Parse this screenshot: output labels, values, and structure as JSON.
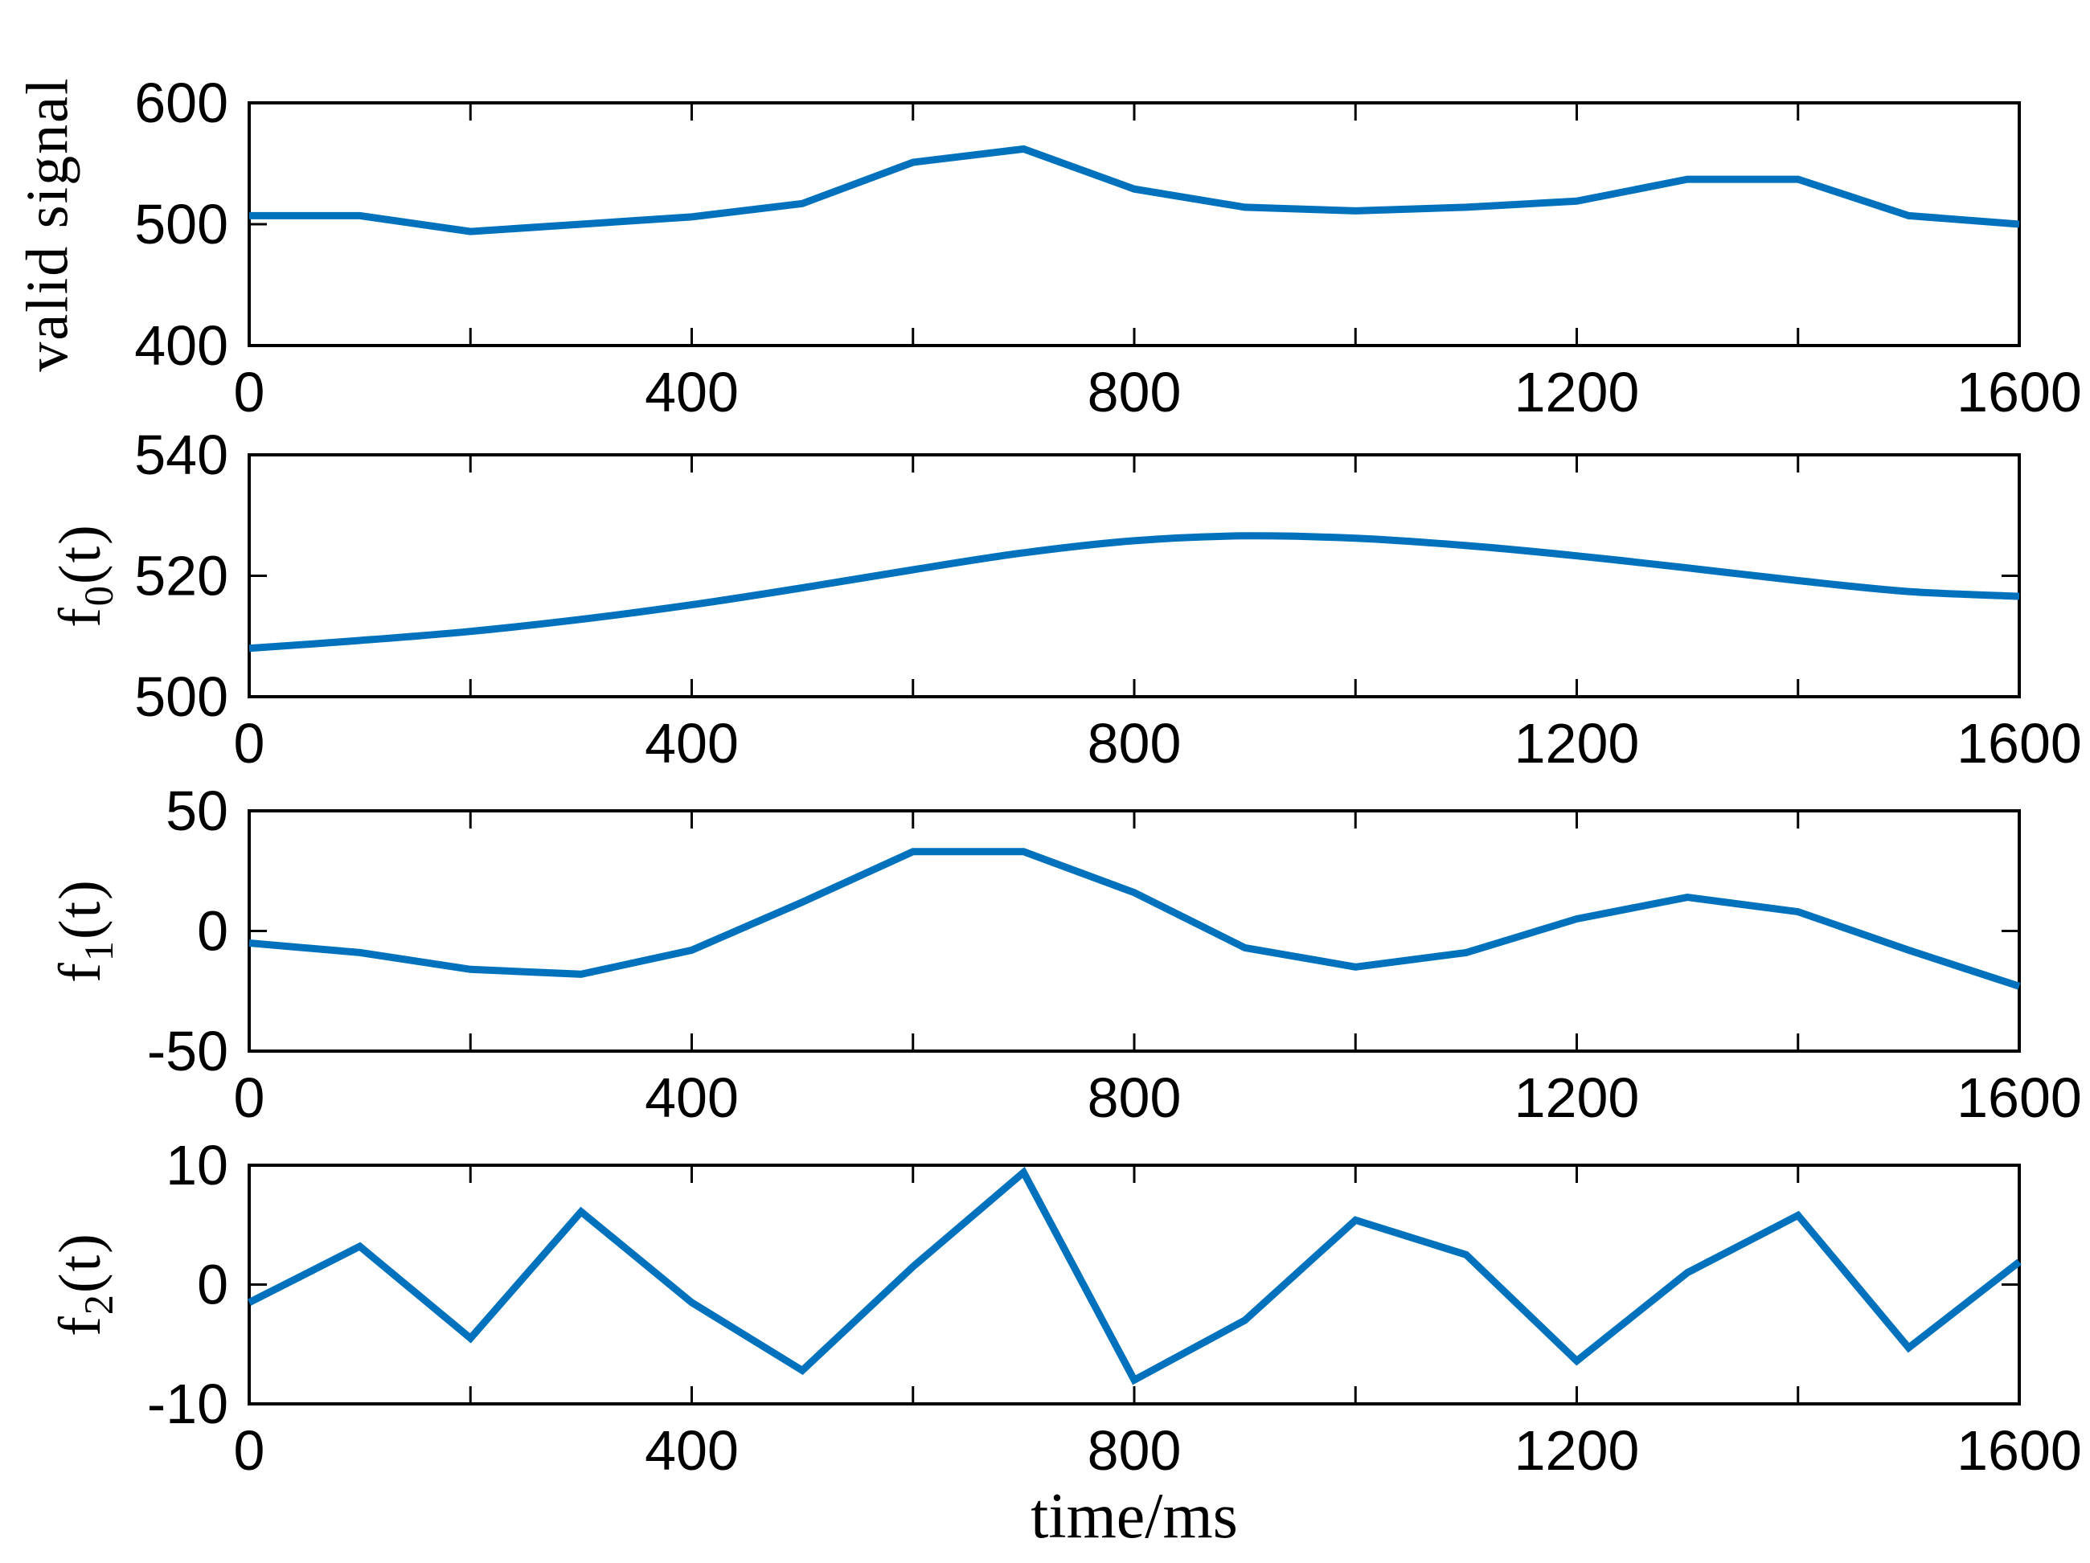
{
  "figure": {
    "background": "#ffffff",
    "axis_color": "#000000",
    "line_color": "#0072BD",
    "xlabel": "time/ms"
  },
  "chart_data": {
    "type": "line",
    "xlabel": "time/ms",
    "x": [
      0,
      100,
      200,
      300,
      400,
      500,
      600,
      700,
      800,
      900,
      1000,
      1100,
      1200,
      1300,
      1400,
      1500,
      1600
    ],
    "xlim": [
      0,
      1600
    ],
    "xticks_labeled": [
      0,
      400,
      800,
      1200,
      1600
    ],
    "xtick_minor_step": 200,
    "grid": false,
    "legend": "none",
    "panels": [
      {
        "ylabel": {
          "pre": "valid signal",
          "sub": "",
          "post": ""
        },
        "ylim": [
          400,
          600
        ],
        "yticks": [
          600,
          500,
          400
        ],
        "smooth": false,
        "values": [
          507,
          507,
          494,
          500,
          506,
          517,
          551,
          562,
          529,
          514,
          511,
          514,
          519,
          537,
          537,
          507,
          500
        ]
      },
      {
        "ylabel": {
          "pre": "f",
          "sub": "0",
          "post": "(t)"
        },
        "ylim": [
          500,
          540
        ],
        "yticks": [
          540,
          520,
          500
        ],
        "smooth": true,
        "values": [
          508,
          509.3,
          510.8,
          512.8,
          515.2,
          518,
          521,
          523.8,
          525.8,
          526.6,
          526.2,
          525,
          523.3,
          521.3,
          519.2,
          517.4,
          516.6
        ]
      },
      {
        "ylabel": {
          "pre": "f",
          "sub": "1",
          "post": "(t)"
        },
        "ylim": [
          -50,
          50
        ],
        "yticks": [
          50,
          0,
          -50
        ],
        "smooth": false,
        "values": [
          -5,
          -9,
          -16,
          -18,
          -8,
          12,
          33,
          33,
          16,
          -7,
          -15,
          -9,
          5,
          14,
          8,
          -8,
          -23
        ]
      },
      {
        "ylabel": {
          "pre": "f",
          "sub": "2",
          "post": "(t)"
        },
        "ylim": [
          -10,
          10
        ],
        "yticks": [
          10,
          0,
          -10
        ],
        "smooth": false,
        "values": [
          -1.5,
          3.2,
          -4.5,
          6.1,
          -1.5,
          -7.2,
          1.5,
          9.4,
          -8,
          -3,
          5.4,
          2.5,
          -6.4,
          1,
          5.8,
          -5.3,
          1.9
        ]
      }
    ]
  }
}
